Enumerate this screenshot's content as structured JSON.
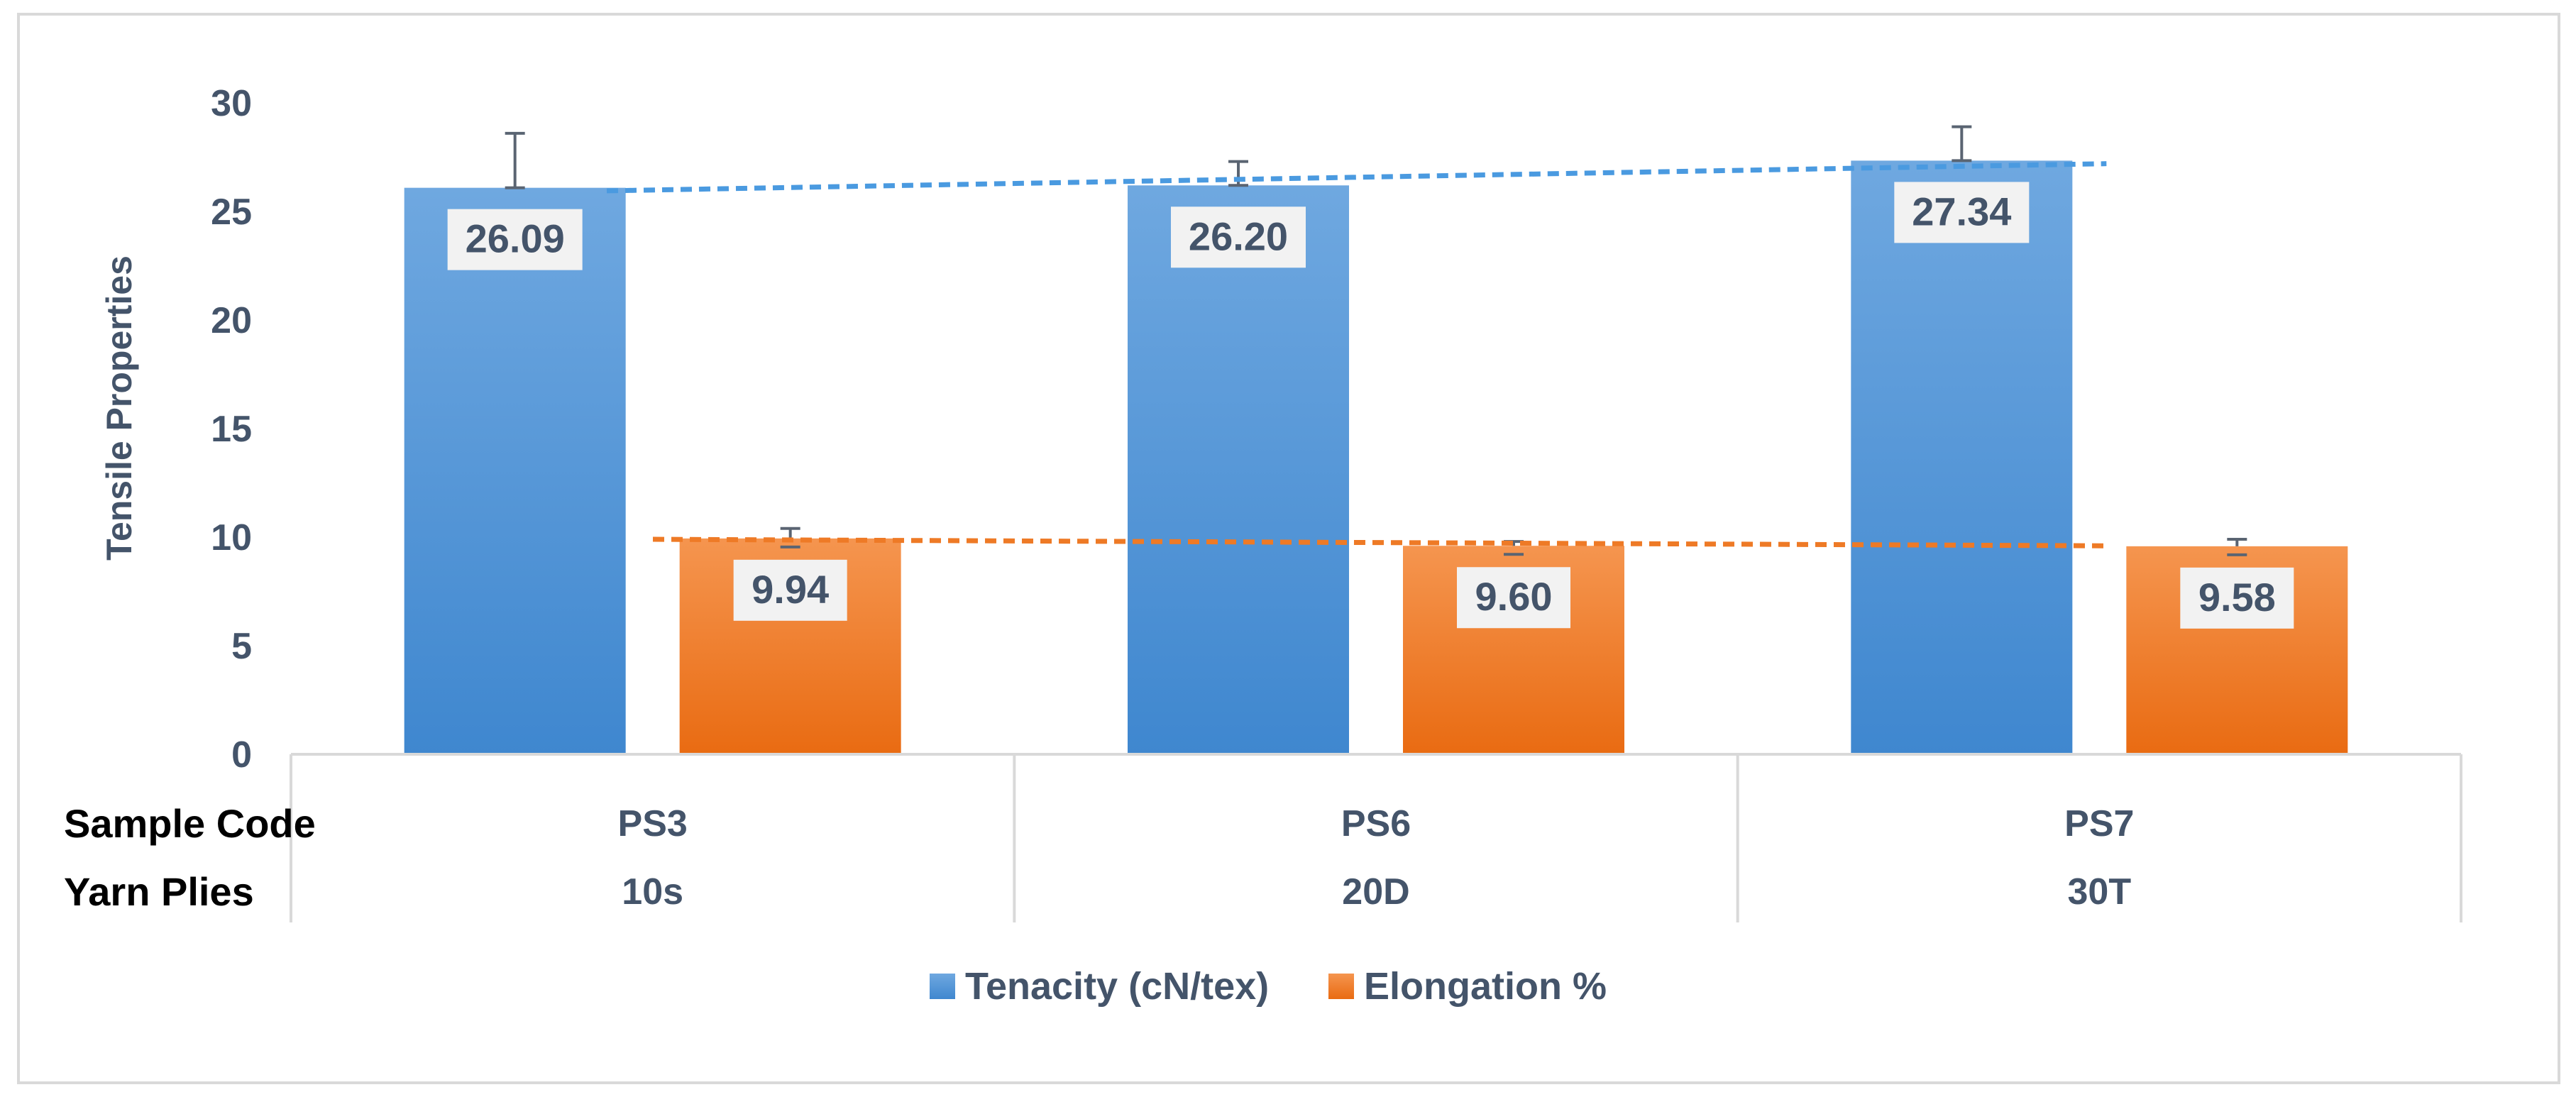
{
  "chart_data": {
    "type": "bar",
    "title": "",
    "xlabel": "",
    "ylabel": "Tensile Properties",
    "ylim": [
      0,
      30
    ],
    "yticks": [
      0,
      5,
      10,
      15,
      20,
      25,
      30
    ],
    "grid": false,
    "legend_position": "bottom",
    "category_rows": [
      {
        "label": "Sample Code",
        "values": [
          "PS3",
          "PS6",
          "PS7"
        ]
      },
      {
        "label": "Yarn Plies",
        "values": [
          "10s",
          "20D",
          "30T"
        ]
      }
    ],
    "categories": [
      "PS3",
      "PS6",
      "PS7"
    ],
    "series": [
      {
        "name": "Tenacity (cN/tex)",
        "values": [
          26.09,
          26.2,
          27.34
        ],
        "labels": [
          "26.09",
          "26.20",
          "27.34"
        ],
        "error_upper": [
          28.6,
          27.3,
          28.9
        ],
        "trend": [
          25.95,
          27.2
        ],
        "color_top": "#6fa8e0",
        "color_bottom": "#3f87cf",
        "trend_color": "#4a9ae0"
      },
      {
        "name": "Elongation %",
        "values": [
          9.94,
          9.6,
          9.58
        ],
        "labels": [
          "9.94",
          "9.60",
          "9.58"
        ],
        "error_upper": [
          10.4,
          9.8,
          9.9
        ],
        "trend": [
          9.9,
          9.6
        ],
        "color_top": "#f5954f",
        "color_bottom": "#e96b12",
        "trend_color": "#ee7a26"
      }
    ]
  },
  "colors": {
    "axis_text": "#44546a",
    "row_label_text": "#000000",
    "label_bg": "#f2f2f2",
    "frame": "#d9d9d9"
  }
}
